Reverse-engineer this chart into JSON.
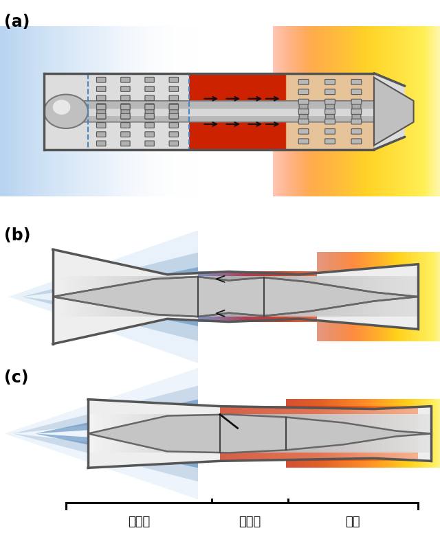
{
  "labels_abc": [
    "(a)",
    "(b)",
    "(c)"
  ],
  "section_labels": [
    "进气道",
    "燃烧室",
    "噴口"
  ],
  "bg_color": "#ffffff",
  "wall_color": "#666666",
  "silver_light": "#e0e0e0",
  "silver_mid": "#b0b0b0",
  "silver_dark": "#888888",
  "blue_light": "#c8dff0",
  "blue_mid": "#7aaad0",
  "blue_dark": "#4488cc",
  "red_dark": "#990000",
  "red_mid": "#cc2200",
  "orange": "#ff8800",
  "yellow": "#ffee00",
  "white": "#ffffff",
  "panel_a_yrange": [
    0.6,
    0.38
  ],
  "panel_b_yrange": [
    0.315,
    0.27
  ],
  "panel_c_yrange": [
    0.07,
    0.26
  ],
  "panel_lbl_yrange": [
    0.0,
    0.09
  ]
}
